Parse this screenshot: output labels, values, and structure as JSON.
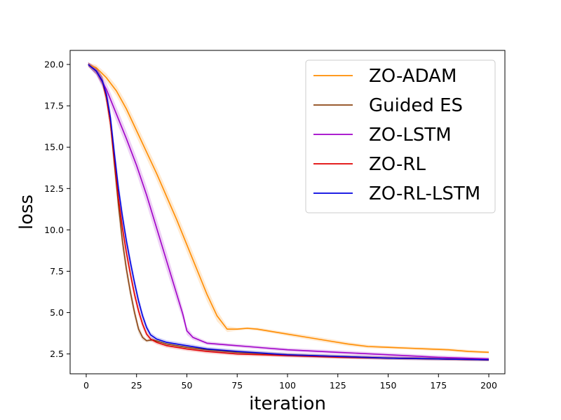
{
  "chart_data": {
    "type": "line",
    "title": "",
    "xlabel": "iteration",
    "ylabel": "loss",
    "xlim": [
      -8,
      208
    ],
    "ylim": [
      1.3,
      20.85
    ],
    "xticks": [
      0,
      25,
      50,
      75,
      100,
      125,
      150,
      175,
      200
    ],
    "yticks": [
      2.5,
      5.0,
      7.5,
      10.0,
      12.5,
      15.0,
      17.5,
      20.0
    ],
    "xtick_labels": [
      "0",
      "25",
      "50",
      "75",
      "100",
      "125",
      "150",
      "175",
      "200"
    ],
    "ytick_labels": [
      "2.5",
      "5.0",
      "7.5",
      "10.0",
      "12.5",
      "15.0",
      "17.5",
      "20.0"
    ],
    "legend_position": "top-right",
    "grid": false,
    "series": [
      {
        "name": "ZO-ADAM",
        "color": "#ff8c00",
        "x": [
          1,
          5,
          10,
          15,
          20,
          25,
          30,
          35,
          40,
          45,
          50,
          55,
          60,
          65,
          70,
          75,
          80,
          85,
          90,
          95,
          100,
          110,
          120,
          130,
          140,
          150,
          160,
          170,
          180,
          190,
          200
        ],
        "y": [
          20.0,
          19.8,
          19.2,
          18.4,
          17.3,
          16.0,
          14.7,
          13.4,
          12.0,
          10.6,
          9.1,
          7.6,
          6.1,
          4.8,
          4.0,
          4.0,
          4.05,
          4.0,
          3.9,
          3.8,
          3.7,
          3.5,
          3.3,
          3.1,
          2.95,
          2.9,
          2.85,
          2.8,
          2.75,
          2.65,
          2.6
        ]
      },
      {
        "name": "Guided ES",
        "color": "#8b4513",
        "x": [
          1,
          5,
          8,
          10,
          12,
          14,
          16,
          18,
          20,
          22,
          24,
          26,
          28,
          30,
          33,
          36,
          40,
          50,
          60,
          75,
          100,
          125,
          150,
          175,
          200
        ],
        "y": [
          20.0,
          19.6,
          19.0,
          18.0,
          16.5,
          14.0,
          11.5,
          9.3,
          7.6,
          6.2,
          5.0,
          4.0,
          3.5,
          3.3,
          3.35,
          3.25,
          3.1,
          2.9,
          2.75,
          2.6,
          2.45,
          2.35,
          2.25,
          2.2,
          2.15
        ]
      },
      {
        "name": "ZO-LSTM",
        "color": "#a000c8",
        "x": [
          1,
          5,
          10,
          15,
          20,
          25,
          30,
          35,
          40,
          45,
          48,
          50,
          53,
          57,
          60,
          70,
          80,
          90,
          100,
          125,
          150,
          175,
          200
        ],
        "y": [
          20.0,
          19.6,
          18.5,
          17.0,
          15.5,
          13.9,
          12.1,
          10.1,
          8.1,
          6.1,
          4.9,
          3.9,
          3.5,
          3.3,
          3.15,
          3.05,
          2.95,
          2.85,
          2.75,
          2.6,
          2.45,
          2.3,
          2.2
        ]
      },
      {
        "name": "ZO-RL",
        "color": "#e00000",
        "x": [
          1,
          5,
          8,
          10,
          12,
          14,
          16,
          18,
          20,
          22,
          24,
          26,
          28,
          30,
          32,
          35,
          40,
          50,
          60,
          75,
          100,
          125,
          150,
          175,
          200
        ],
        "y": [
          20.0,
          19.6,
          19.0,
          18.0,
          16.5,
          14.2,
          11.9,
          10.1,
          8.6,
          7.3,
          6.1,
          5.1,
          4.3,
          3.7,
          3.4,
          3.2,
          3.0,
          2.8,
          2.65,
          2.5,
          2.4,
          2.3,
          2.25,
          2.2,
          2.15
        ]
      },
      {
        "name": "ZO-RL-LSTM",
        "color": "#0000e0",
        "x": [
          1,
          5,
          8,
          10,
          12,
          14,
          16,
          18,
          20,
          22,
          24,
          26,
          28,
          30,
          32,
          35,
          40,
          50,
          60,
          75,
          100,
          125,
          150,
          175,
          200
        ],
        "y": [
          20.0,
          19.6,
          19.0,
          18.2,
          16.8,
          14.6,
          12.5,
          10.8,
          9.3,
          8.0,
          6.8,
          5.7,
          4.8,
          4.1,
          3.65,
          3.4,
          3.2,
          3.0,
          2.8,
          2.65,
          2.45,
          2.35,
          2.25,
          2.2,
          2.15
        ]
      }
    ]
  }
}
